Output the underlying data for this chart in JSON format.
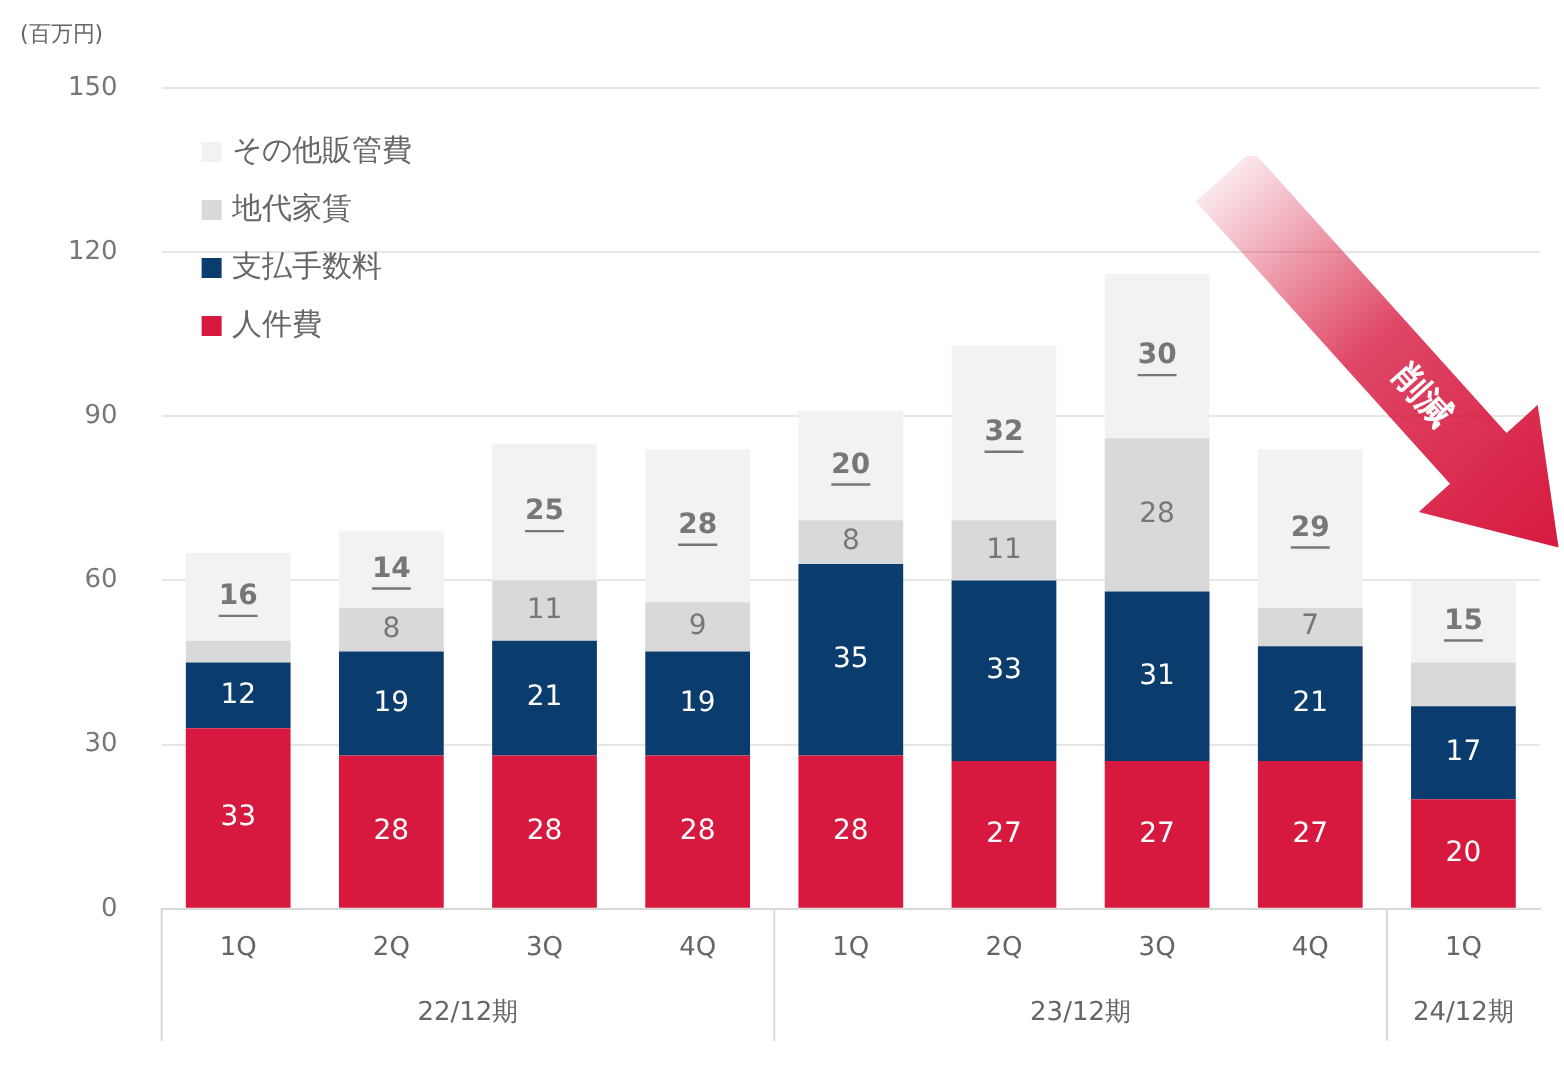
{
  "chart_data": {
    "type": "bar",
    "stacked": true,
    "ylabel": "(百万円)",
    "categories": [
      "1Q",
      "2Q",
      "3Q",
      "4Q",
      "1Q",
      "2Q",
      "3Q",
      "4Q",
      "1Q"
    ],
    "series": [
      {
        "name": "人件費",
        "color": "#d7193f",
        "values": [
          33,
          28,
          28,
          28,
          28,
          27,
          27,
          27,
          20
        ],
        "value_labels": [
          "33",
          "28",
          "28",
          "28",
          "28",
          "27",
          "27",
          "27",
          "20"
        ]
      },
      {
        "name": "支払手数料",
        "color": "#0b3c6e",
        "values": [
          12,
          19,
          21,
          19,
          35,
          33,
          31,
          21,
          17
        ],
        "value_labels": [
          "12",
          "19",
          "21",
          "19",
          "35",
          "33",
          "31",
          "21",
          "17"
        ]
      },
      {
        "name": "地代家賃",
        "color": "#d9d9d9",
        "values": [
          4,
          8,
          11,
          9,
          8,
          11,
          28,
          7,
          8
        ],
        "value_labels": [
          null,
          "8",
          "11",
          "9",
          "8",
          "11",
          "28",
          "7",
          null
        ]
      },
      {
        "name": "その他販管費",
        "color": "#f2f2f2",
        "values": [
          16,
          14,
          25,
          28,
          20,
          32,
          30,
          29,
          15
        ],
        "value_labels": [
          "16",
          "14",
          "25",
          "28",
          "20",
          "32",
          "30",
          "29",
          "15"
        ]
      }
    ],
    "ylim": [
      0,
      150
    ],
    "yticks": [
      0,
      30,
      60,
      90,
      120,
      150
    ],
    "grid": "y",
    "legend": "top left",
    "annotations": [
      "22/12期",
      "23/12期",
      "24/12期",
      "削減"
    ]
  }
}
